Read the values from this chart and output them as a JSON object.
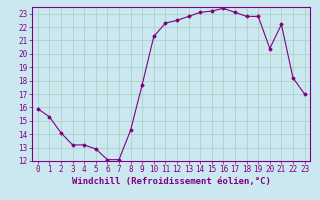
{
  "x_values": [
    0,
    1,
    2,
    3,
    4,
    5,
    6,
    7,
    8,
    9,
    10,
    11,
    12,
    13,
    14,
    15,
    16,
    17,
    18,
    19,
    20,
    21,
    22,
    23
  ],
  "y_values": [
    15.9,
    15.3,
    14.1,
    13.2,
    13.2,
    12.9,
    12.1,
    12.1,
    14.3,
    17.7,
    21.3,
    22.3,
    22.5,
    22.8,
    23.1,
    23.2,
    23.4,
    23.1,
    22.8,
    22.8,
    20.4,
    22.2,
    18.2,
    17.0
  ],
  "xlim": [
    -0.5,
    23.5
  ],
  "ylim": [
    12,
    23.5
  ],
  "yticks": [
    12,
    13,
    14,
    15,
    16,
    17,
    18,
    19,
    20,
    21,
    22,
    23
  ],
  "xticks": [
    0,
    1,
    2,
    3,
    4,
    5,
    6,
    7,
    8,
    9,
    10,
    11,
    12,
    13,
    14,
    15,
    16,
    17,
    18,
    19,
    20,
    21,
    22,
    23
  ],
  "xlabel": "Windchill (Refroidissement éolien,°C)",
  "line_color": "#800080",
  "marker": "D",
  "marker_size": 1.5,
  "bg_color": "#cbe8f0",
  "grid_color": "#a8cfc0",
  "tick_label_fontsize": 5.5,
  "xlabel_fontsize": 6.5,
  "linewidth": 0.8
}
